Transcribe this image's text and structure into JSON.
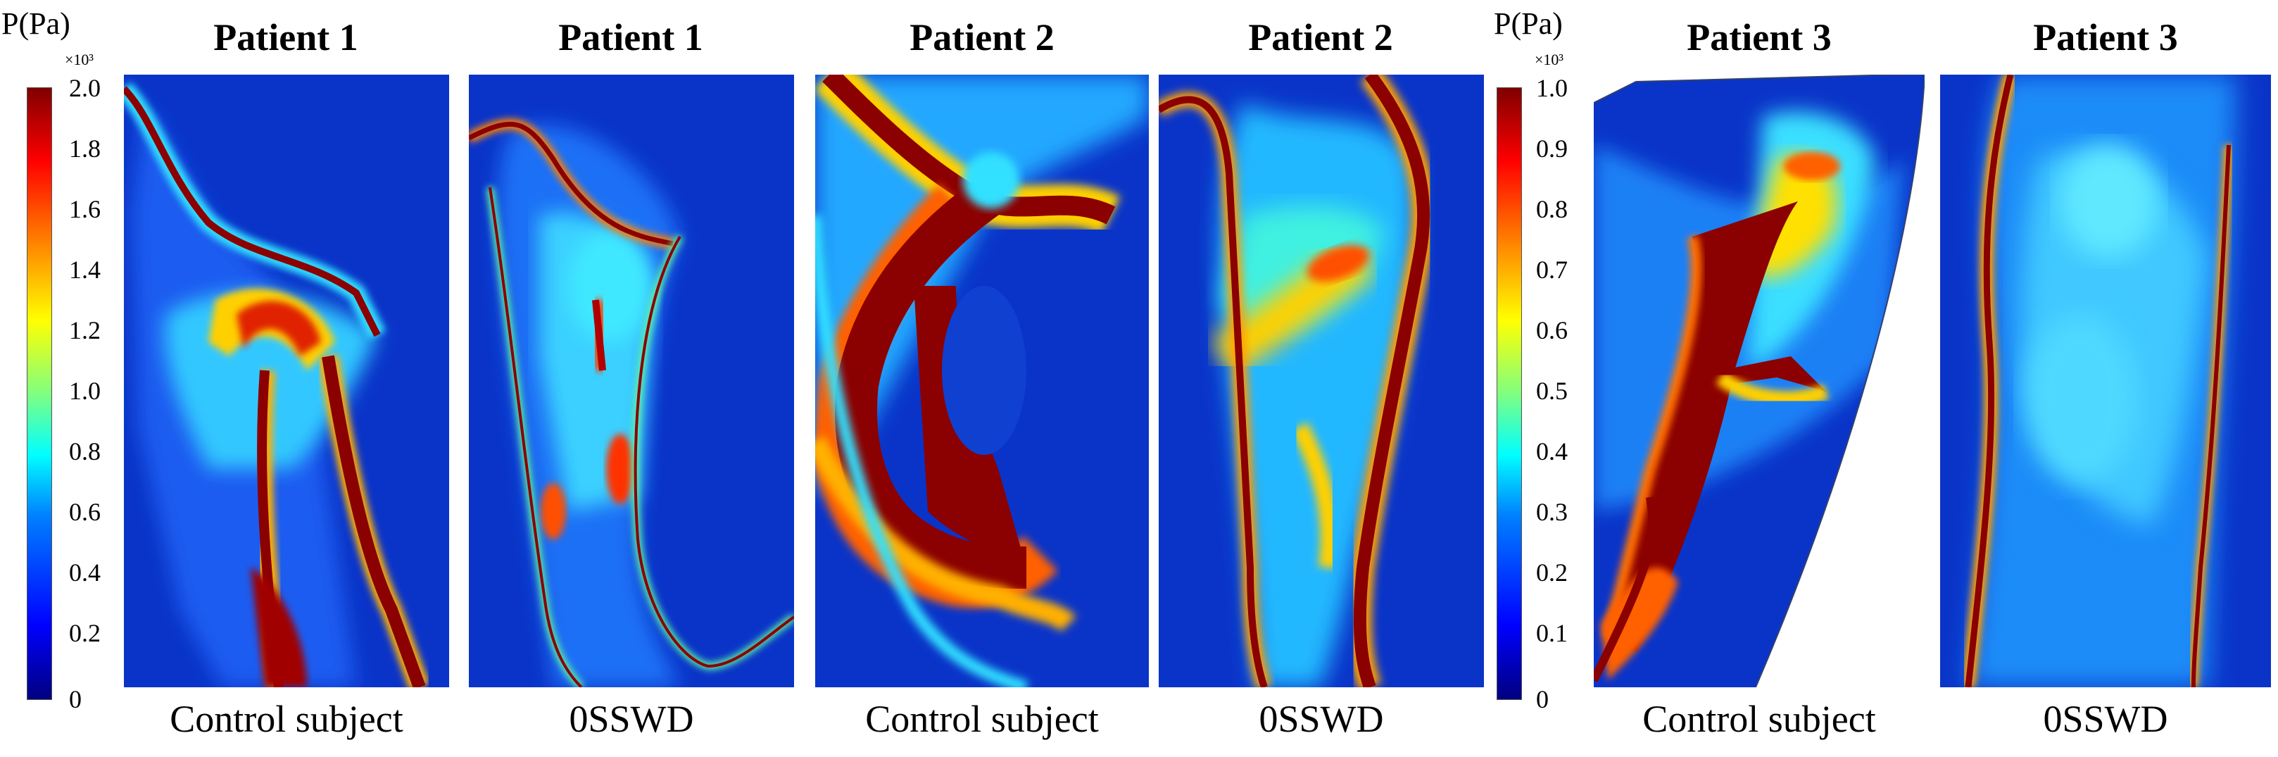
{
  "colorbars": [
    {
      "title": "P(Pa)",
      "multiplier": "×10³",
      "ticks": [
        "2.0",
        "1.8",
        "1.6",
        "1.4",
        "1.2",
        "1.0",
        "0.8",
        "0.6",
        "0.4",
        "0.2",
        "0"
      ]
    },
    {
      "title": "P(Pa)",
      "multiplier": "×10³",
      "ticks": [
        "1.0",
        "0.9",
        "0.8",
        "0.7",
        "0.6",
        "0.5",
        "0.4",
        "0.3",
        "0.2",
        "0.1",
        "0"
      ]
    }
  ],
  "panels": [
    {
      "title": "Patient 1",
      "caption": "Control subject"
    },
    {
      "title": "Patient 1",
      "caption": "0SSWD"
    },
    {
      "title": "Patient 2",
      "caption": "Control subject"
    },
    {
      "title": "Patient 2",
      "caption": "0SSWD"
    },
    {
      "title": "Patient 3",
      "caption": "Control subject"
    },
    {
      "title": "Patient 3",
      "caption": "0SSWD"
    }
  ],
  "colors": {
    "background_field": "#0a34c8",
    "high_pressure": "#8b0000",
    "mid_pressure": "#ffd000",
    "low_pressure": "#00e0ff"
  }
}
